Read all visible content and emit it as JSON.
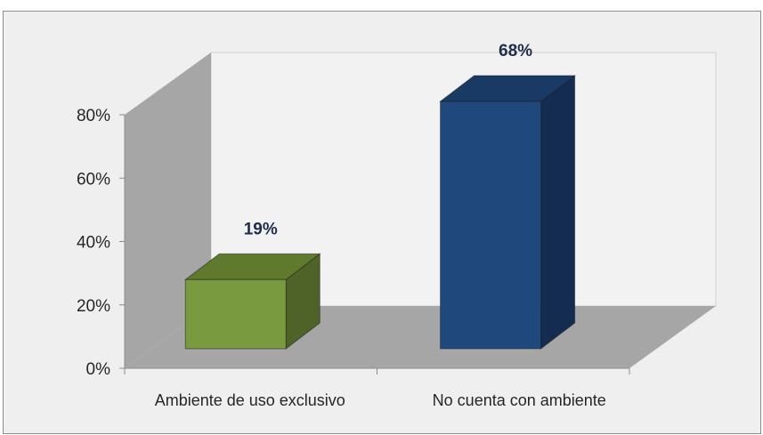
{
  "chart_data": {
    "type": "bar",
    "categories": [
      "Ambiente de uso exclusivo",
      "No cuenta con ambiente"
    ],
    "values": [
      19,
      68
    ],
    "data_labels": [
      "19%",
      "68%"
    ],
    "ylim": [
      0,
      80
    ],
    "yticks": [
      0,
      20,
      40,
      60,
      80
    ],
    "ytick_labels": [
      "0%",
      "20%",
      "40%",
      "60%",
      "80%"
    ],
    "title": "",
    "xlabel": "",
    "ylabel": "",
    "bar_colors": [
      "#7a9a3f",
      "#1f497d"
    ],
    "bar_side_colors": [
      "#4f6228",
      "#132c4f"
    ],
    "bar_top_colors": [
      "#5f7a2c",
      "#1a3a66"
    ],
    "grid": false,
    "legend": "none",
    "style": "3d-column"
  }
}
